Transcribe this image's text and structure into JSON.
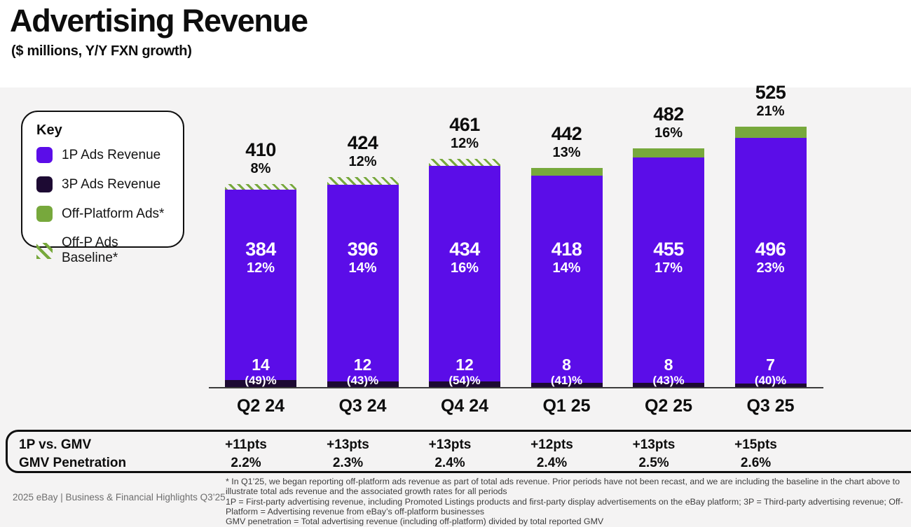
{
  "header": {
    "title": "Advertising Revenue",
    "subtitle": "($ millions, Y/Y FXN growth)"
  },
  "legend": {
    "title": "Key",
    "items": [
      {
        "label": "1P Ads Revenue",
        "swatch": "purple-square"
      },
      {
        "label": "3P Ads Revenue",
        "swatch": "dark-square"
      },
      {
        "label": "Off-Platform Ads*",
        "swatch": "green-square"
      },
      {
        "label": "Off-P Ads Baseline*",
        "swatch": "green-hatch"
      }
    ]
  },
  "chart_data": {
    "type": "bar",
    "stacked": true,
    "title": "Advertising Revenue",
    "subtitle": "($ millions, Y/Y FXN growth)",
    "unit": "$ millions",
    "grid": false,
    "legend_position": "left",
    "categories": [
      "Q2 24",
      "Q3 24",
      "Q4 24",
      "Q1 25",
      "Q2 25",
      "Q3 25"
    ],
    "totals": {
      "values": [
        410,
        424,
        461,
        442,
        482,
        525
      ],
      "growth": [
        "8%",
        "12%",
        "12%",
        "13%",
        "16%",
        "21%"
      ]
    },
    "series": [
      {
        "name": "1P Ads Revenue",
        "values": [
          384,
          396,
          434,
          418,
          455,
          496
        ],
        "growth": [
          "12%",
          "14%",
          "16%",
          "14%",
          "17%",
          "23%"
        ]
      },
      {
        "name": "3P Ads Revenue",
        "values": [
          14,
          12,
          12,
          8,
          8,
          7
        ],
        "growth": [
          "(49)%",
          "(43)%",
          "(54)%",
          "(41)%",
          "(43)%",
          "(40)%"
        ]
      },
      {
        "name": "Off-Platform Ads",
        "values": [
          12,
          16,
          15,
          16,
          19,
          22
        ],
        "render": [
          "baseline",
          "baseline",
          "baseline",
          "solid",
          "solid",
          "solid"
        ]
      }
    ]
  },
  "metrics_table": {
    "rows": [
      {
        "label": "1P vs. GMV",
        "values": [
          "+11pts",
          "+13pts",
          "+13pts",
          "+12pts",
          "+13pts",
          "+15pts"
        ]
      },
      {
        "label": "GMV Penetration",
        "values": [
          "2.2%",
          "2.3%",
          "2.4%",
          "2.4%",
          "2.5%",
          "2.6%"
        ]
      }
    ]
  },
  "footnotes": [
    "* In Q1’25, we began reporting off-platform ads revenue as part of total ads revenue. Prior periods have not been recast, and we are including the baseline in the chart above to illustrate total ads revenue and the associated growth rates for all periods",
    "1P = First-party advertising revenue, including Promoted Listings products and first-party display advertisements on the eBay platform; 3P = Third-party advertising revenue; Off-Platform = Advertising revenue from eBay’s off-platform businesses",
    "GMV penetration = Total advertising revenue (including off-platform) divided by total reported GMV"
  ],
  "footer": {
    "text": "2025 eBay | Business & Financial Highlights Q3’25"
  },
  "colors": {
    "p1": "#5b0de8",
    "p3": "#1d0a33",
    "offplatform": "#77a83c",
    "background": "#f4f3f3",
    "header_background": "#ffffff",
    "text": "#0d0d0d",
    "axis": "#3c3c3c",
    "footer_text": "#6e6e6e"
  }
}
